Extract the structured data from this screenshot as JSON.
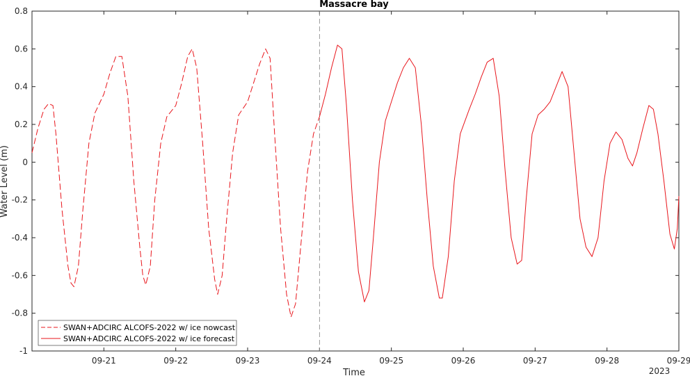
{
  "chart_data": {
    "type": "line",
    "title": "Massacre bay",
    "xlabel": "Time",
    "ylabel": "Water Level (m)",
    "x_year_label": "2023",
    "ylim": [
      -1,
      0.8
    ],
    "y_ticks": [
      "-1",
      "-0.8",
      "-0.6",
      "-0.4",
      "-0.2",
      "0",
      "0.2",
      "0.4",
      "0.6",
      "0.8"
    ],
    "xlim": [
      "2023-09-20 00:00",
      "2023-09-29 00:00"
    ],
    "x_ticks": [
      "09-21",
      "09-22",
      "09-23",
      "09-24",
      "09-25",
      "09-26",
      "09-27",
      "09-28",
      "09-29"
    ],
    "nowcast_forecast_boundary": "2023-09-24 00:00",
    "grid": false,
    "legend_position": "bottom-left",
    "colors": {
      "series": "#e8151b",
      "boundary": "#808080",
      "axis": "#262626"
    },
    "series": [
      {
        "name": "SWAN+ADCIRC ALCOFS-2022 w/ ice nowcast",
        "style": "dashed",
        "points": [
          [
            "2023-09-20 00:00",
            0.05
          ],
          [
            "2023-09-20 02:00",
            0.18
          ],
          [
            "2023-09-20 04:00",
            0.28
          ],
          [
            "2023-09-20 05:30",
            0.31
          ],
          [
            "2023-09-20 07:00",
            0.3
          ],
          [
            "2023-09-20 08:00",
            0.15
          ],
          [
            "2023-09-20 10:00",
            -0.25
          ],
          [
            "2023-09-20 12:00",
            -0.55
          ],
          [
            "2023-09-20 13:00",
            -0.64
          ],
          [
            "2023-09-20 14:00",
            -0.66
          ],
          [
            "2023-09-20 15:30",
            -0.55
          ],
          [
            "2023-09-20 17:00",
            -0.25
          ],
          [
            "2023-09-20 19:00",
            0.1
          ],
          [
            "2023-09-20 21:00",
            0.26
          ],
          [
            "2023-09-21 00:00",
            0.36
          ],
          [
            "2023-09-21 02:00",
            0.47
          ],
          [
            "2023-09-21 04:00",
            0.56
          ],
          [
            "2023-09-21 06:00",
            0.56
          ],
          [
            "2023-09-21 08:00",
            0.35
          ],
          [
            "2023-09-21 10:00",
            -0.1
          ],
          [
            "2023-09-21 12:00",
            -0.45
          ],
          [
            "2023-09-21 13:00",
            -0.6
          ],
          [
            "2023-09-21 14:00",
            -0.65
          ],
          [
            "2023-09-21 15:30",
            -0.55
          ],
          [
            "2023-09-21 17:00",
            -0.2
          ],
          [
            "2023-09-21 19:00",
            0.1
          ],
          [
            "2023-09-21 21:00",
            0.24
          ],
          [
            "2023-09-22 00:00",
            0.3
          ],
          [
            "2023-09-22 02:00",
            0.42
          ],
          [
            "2023-09-22 04:00",
            0.56
          ],
          [
            "2023-09-22 05:30",
            0.6
          ],
          [
            "2023-09-22 07:00",
            0.5
          ],
          [
            "2023-09-22 09:00",
            0.1
          ],
          [
            "2023-09-22 11:00",
            -0.35
          ],
          [
            "2023-09-22 13:00",
            -0.62
          ],
          [
            "2023-09-22 14:00",
            -0.7
          ],
          [
            "2023-09-22 15:30",
            -0.6
          ],
          [
            "2023-09-22 17:00",
            -0.3
          ],
          [
            "2023-09-22 19:00",
            0.05
          ],
          [
            "2023-09-22 21:00",
            0.25
          ],
          [
            "2023-09-23 00:00",
            0.32
          ],
          [
            "2023-09-23 02:00",
            0.42
          ],
          [
            "2023-09-23 04:00",
            0.52
          ],
          [
            "2023-09-23 06:00",
            0.6
          ],
          [
            "2023-09-23 07:30",
            0.55
          ],
          [
            "2023-09-23 09:00",
            0.15
          ],
          [
            "2023-09-23 11:00",
            -0.35
          ],
          [
            "2023-09-23 13:00",
            -0.7
          ],
          [
            "2023-09-23 14:30",
            -0.82
          ],
          [
            "2023-09-23 16:00",
            -0.75
          ],
          [
            "2023-09-23 18:00",
            -0.4
          ],
          [
            "2023-09-23 20:00",
            -0.05
          ],
          [
            "2023-09-23 22:00",
            0.15
          ],
          [
            "2023-09-24 00:00",
            0.24
          ]
        ]
      },
      {
        "name": "SWAN+ADCIRC ALCOFS-2022 w/ ice forecast",
        "style": "solid",
        "points": [
          [
            "2023-09-24 00:00",
            0.24
          ],
          [
            "2023-09-24 02:00",
            0.36
          ],
          [
            "2023-09-24 04:00",
            0.5
          ],
          [
            "2023-09-24 06:00",
            0.62
          ],
          [
            "2023-09-24 07:30",
            0.6
          ],
          [
            "2023-09-24 09:00",
            0.3
          ],
          [
            "2023-09-24 11:00",
            -0.2
          ],
          [
            "2023-09-24 13:00",
            -0.58
          ],
          [
            "2023-09-24 15:00",
            -0.74
          ],
          [
            "2023-09-24 16:30",
            -0.68
          ],
          [
            "2023-09-24 18:00",
            -0.4
          ],
          [
            "2023-09-24 20:00",
            0.0
          ],
          [
            "2023-09-24 22:00",
            0.22
          ],
          [
            "2023-09-25 00:00",
            0.32
          ],
          [
            "2023-09-25 02:00",
            0.42
          ],
          [
            "2023-09-25 04:00",
            0.5
          ],
          [
            "2023-09-25 06:00",
            0.55
          ],
          [
            "2023-09-25 08:00",
            0.5
          ],
          [
            "2023-09-25 10:00",
            0.2
          ],
          [
            "2023-09-25 12:00",
            -0.2
          ],
          [
            "2023-09-25 14:00",
            -0.55
          ],
          [
            "2023-09-25 16:00",
            -0.72
          ],
          [
            "2023-09-25 17:00",
            -0.72
          ],
          [
            "2023-09-25 19:00",
            -0.5
          ],
          [
            "2023-09-25 21:00",
            -0.1
          ],
          [
            "2023-09-25 23:00",
            0.15
          ],
          [
            "2023-09-26 02:00",
            0.28
          ],
          [
            "2023-09-26 04:00",
            0.36
          ],
          [
            "2023-09-26 06:00",
            0.45
          ],
          [
            "2023-09-26 08:00",
            0.53
          ],
          [
            "2023-09-26 10:00",
            0.55
          ],
          [
            "2023-09-26 12:00",
            0.35
          ],
          [
            "2023-09-26 14:00",
            -0.05
          ],
          [
            "2023-09-26 16:00",
            -0.4
          ],
          [
            "2023-09-26 18:00",
            -0.54
          ],
          [
            "2023-09-26 19:30",
            -0.52
          ],
          [
            "2023-09-26 21:00",
            -0.2
          ],
          [
            "2023-09-26 23:00",
            0.15
          ],
          [
            "2023-09-27 01:00",
            0.25
          ],
          [
            "2023-09-27 03:00",
            0.28
          ],
          [
            "2023-09-27 05:00",
            0.32
          ],
          [
            "2023-09-27 07:00",
            0.4
          ],
          [
            "2023-09-27 09:00",
            0.48
          ],
          [
            "2023-09-27 11:00",
            0.4
          ],
          [
            "2023-09-27 13:00",
            0.05
          ],
          [
            "2023-09-27 15:00",
            -0.3
          ],
          [
            "2023-09-27 17:00",
            -0.45
          ],
          [
            "2023-09-27 19:00",
            -0.5
          ],
          [
            "2023-09-27 21:00",
            -0.4
          ],
          [
            "2023-09-27 23:00",
            -0.1
          ],
          [
            "2023-09-28 01:00",
            0.1
          ],
          [
            "2023-09-28 03:00",
            0.16
          ],
          [
            "2023-09-28 05:00",
            0.12
          ],
          [
            "2023-09-28 07:00",
            0.02
          ],
          [
            "2023-09-28 08:30",
            -0.02
          ],
          [
            "2023-09-28 10:00",
            0.05
          ],
          [
            "2023-09-28 12:00",
            0.18
          ],
          [
            "2023-09-28 14:00",
            0.3
          ],
          [
            "2023-09-28 15:30",
            0.28
          ],
          [
            "2023-09-28 17:00",
            0.15
          ],
          [
            "2023-09-28 19:00",
            -0.1
          ],
          [
            "2023-09-28 21:00",
            -0.38
          ],
          [
            "2023-09-28 22:30",
            -0.46
          ],
          [
            "2023-09-28 23:30",
            -0.35
          ],
          [
            "2023-09-29 00:00",
            -0.18
          ]
        ]
      }
    ]
  }
}
